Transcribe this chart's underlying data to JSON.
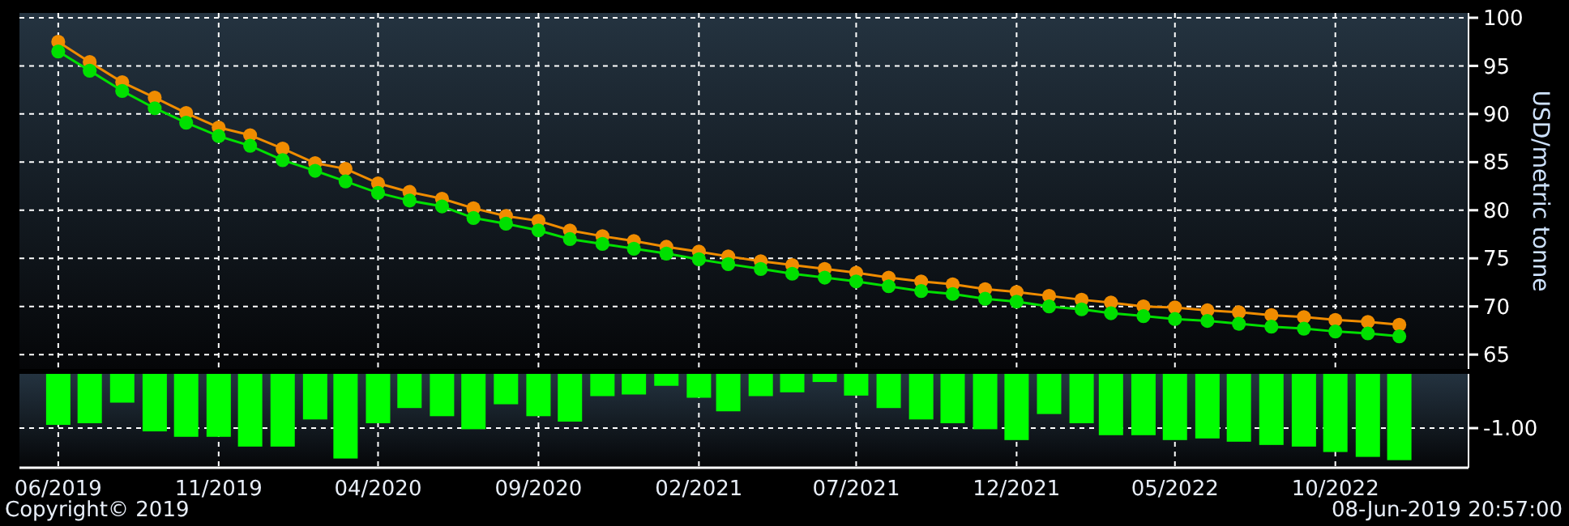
{
  "chart_data": [
    {
      "type": "line",
      "ylabel": "USD/metric tonne",
      "x": [
        "2019-06",
        "2019-07",
        "2019-08",
        "2019-09",
        "2019-10",
        "2019-11",
        "2019-12",
        "2020-01",
        "2020-02",
        "2020-03",
        "2020-04",
        "2020-05",
        "2020-06",
        "2020-07",
        "2020-08",
        "2020-09",
        "2020-10",
        "2020-11",
        "2020-12",
        "2021-01",
        "2021-02",
        "2021-03",
        "2021-04",
        "2021-05",
        "2021-06",
        "2021-07",
        "2021-08",
        "2021-09",
        "2021-10",
        "2021-11",
        "2021-12",
        "2022-01",
        "2022-02",
        "2022-03",
        "2022-04",
        "2022-05",
        "2022-06",
        "2022-07",
        "2022-08",
        "2022-09",
        "2022-10",
        "2022-11",
        "2022-12"
      ],
      "series": [
        {
          "color": "#f08c00",
          "values": [
            97.5,
            95.4,
            93.3,
            91.7,
            90.1,
            88.6,
            87.8,
            86.4,
            84.9,
            84.3,
            82.8,
            81.9,
            81.2,
            80.2,
            79.4,
            78.9,
            77.9,
            77.3,
            76.8,
            76.2,
            75.7,
            75.2,
            74.7,
            74.3,
            73.9,
            73.5,
            73.0,
            72.6,
            72.3,
            71.8,
            71.5,
            71.1,
            70.7,
            70.4,
            70.0,
            69.9,
            69.6,
            69.4,
            69.1,
            68.9,
            68.6,
            68.4,
            68.1
          ]
        },
        {
          "color": "#00e000",
          "values": [
            96.5,
            94.5,
            92.4,
            90.6,
            89.1,
            87.7,
            86.7,
            85.2,
            84.1,
            83.0,
            81.8,
            81.0,
            80.4,
            79.2,
            78.6,
            77.9,
            77.0,
            76.5,
            76.0,
            75.5,
            74.9,
            74.4,
            73.9,
            73.4,
            73.0,
            72.6,
            72.1,
            71.6,
            71.3,
            70.8,
            70.5,
            70.0,
            69.7,
            69.3,
            69.0,
            68.7,
            68.5,
            68.2,
            67.9,
            67.7,
            67.4,
            67.2,
            66.9
          ]
        }
      ],
      "xlim": [
        "2019-04-25",
        "2023-02-05"
      ],
      "xticks": [
        {
          "value": "2019-06",
          "label": null
        },
        {
          "value": "2019-11",
          "label": null
        },
        {
          "value": "2020-04",
          "label": null
        },
        {
          "value": "2020-09",
          "label": null
        },
        {
          "value": "2021-02",
          "label": null
        },
        {
          "value": "2021-07",
          "label": null
        },
        {
          "value": "2021-12",
          "label": null
        },
        {
          "value": "2022-05",
          "label": null
        },
        {
          "value": "2022-10",
          "label": null
        }
      ],
      "ylim": [
        63.5,
        100.5
      ],
      "yticks": [
        65,
        70,
        75,
        80,
        85,
        90,
        95,
        100
      ],
      "grid": true,
      "tick_labels": "y",
      "marker": "circle",
      "line_style": "solid"
    },
    {
      "type": "bar",
      "x": [
        "2019-06",
        "2019-07",
        "2019-08",
        "2019-09",
        "2019-10",
        "2019-11",
        "2019-12",
        "2020-01",
        "2020-02",
        "2020-03",
        "2020-04",
        "2020-05",
        "2020-06",
        "2020-07",
        "2020-08",
        "2020-09",
        "2020-10",
        "2020-11",
        "2020-12",
        "2021-01",
        "2021-02",
        "2021-03",
        "2021-04",
        "2021-05",
        "2021-06",
        "2021-07",
        "2021-08",
        "2021-09",
        "2021-10",
        "2021-11",
        "2021-12",
        "2022-01",
        "2022-02",
        "2022-03",
        "2022-04",
        "2022-05",
        "2022-06",
        "2022-07",
        "2022-08",
        "2022-09",
        "2022-10",
        "2022-11",
        "2022-12"
      ],
      "values": [
        -0.94,
        -0.91,
        -0.53,
        -1.06,
        -1.16,
        -1.16,
        -1.34,
        -1.34,
        -0.84,
        -1.56,
        -0.91,
        -0.63,
        -0.78,
        -1.02,
        -0.56,
        -0.78,
        -0.88,
        -0.41,
        -0.38,
        -0.22,
        -0.44,
        -0.69,
        -0.41,
        -0.34,
        -0.15,
        -0.4,
        -0.63,
        -0.84,
        -0.91,
        -1.02,
        -1.22,
        -0.74,
        -0.91,
        -1.13,
        -1.13,
        -1.22,
        -1.19,
        -1.25,
        -1.31,
        -1.34,
        -1.44,
        -1.53,
        -1.59
      ],
      "color": "#00ff00",
      "xlim": [
        "2019-04-25",
        "2023-02-05"
      ],
      "xticks": [
        {
          "value": "2019-06",
          "label": "06/2019"
        },
        {
          "value": "2019-11",
          "label": "11/2019"
        },
        {
          "value": "2020-04",
          "label": "04/2020"
        },
        {
          "value": "2020-09",
          "label": "09/2020"
        },
        {
          "value": "2021-02",
          "label": "02/2021"
        },
        {
          "value": "2021-07",
          "label": "07/2021"
        },
        {
          "value": "2021-12",
          "label": "12/2021"
        },
        {
          "value": "2022-05",
          "label": "05/2022"
        },
        {
          "value": "2022-10",
          "label": "10/2022"
        }
      ],
      "ylim": [
        -1.73,
        0
      ],
      "yticks": [
        {
          "value": -1,
          "label": "-1.00"
        }
      ],
      "grid": true,
      "annotations": [
        "Copyright© 2019",
        "08-Jun-2019 20:57:00"
      ]
    }
  ]
}
